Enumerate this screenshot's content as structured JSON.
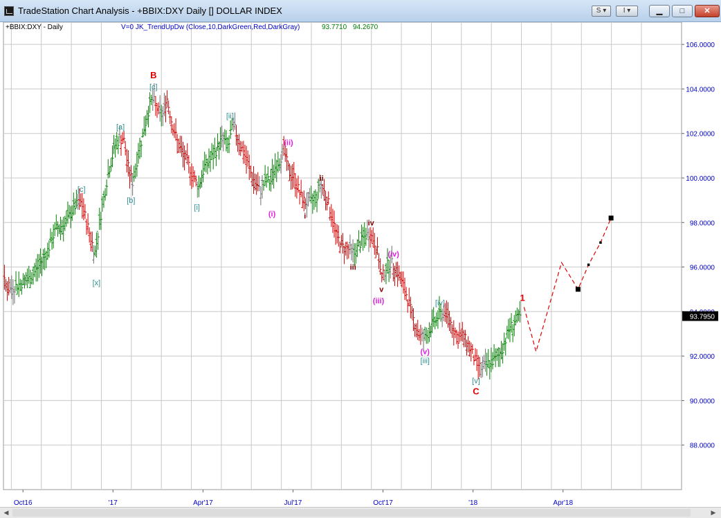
{
  "window": {
    "title": "TradeStation Chart Analysis - +BBIX:DXY Daily [] DOLLAR INDEX",
    "buttons": {
      "s_menu": "S",
      "i_menu": "I"
    }
  },
  "chart_header": {
    "symbol_label": "+BBIX:DXY - Daily",
    "indicator_label": "V=0  JK_TrendUpDw  (Close,10,DarkGreen,Red,DarkGray)",
    "indicator_value1": "93.7710",
    "indicator_value2": "94.2670"
  },
  "colors": {
    "up": "#008000",
    "down": "#d00000",
    "neutral": "#707070",
    "wave_teal": "#2f8f8f",
    "wave_magenta": "#e020e0",
    "wave_red": "#e00000",
    "wave_dark_red": "#800000",
    "axis_text": "#0000cc",
    "grid": "#c8c8c8"
  },
  "chart_data": {
    "type": "bar",
    "subtype": "ohlc",
    "title": "",
    "xlabel": "",
    "ylabel": "",
    "ylim": [
      86,
      107
    ],
    "y_ticks": [
      "106.0000",
      "104.0000",
      "102.0000",
      "100.0000",
      "98.0000",
      "96.0000",
      "94.0000",
      "92.0000",
      "90.0000",
      "88.0000"
    ],
    "x_tick_labels": [
      "Oct16",
      "'17",
      "Apr'17",
      "Jul'17",
      "Oct'17",
      "'18",
      "Apr'18"
    ],
    "x_tick_months": [
      1,
      4,
      7,
      10,
      13,
      16,
      19
    ],
    "last_price_label": "93.7950",
    "last_price": 93.795,
    "grid": true,
    "price_path": [
      [
        -0.9,
        95.5
      ],
      [
        -0.6,
        94.2
      ],
      [
        -0.3,
        95.9
      ],
      [
        0.2,
        95.0
      ],
      [
        0.5,
        95.2
      ],
      [
        0.9,
        95.5
      ],
      [
        1.4,
        96.5
      ],
      [
        1.75,
        97.7
      ],
      [
        2.1,
        98.0
      ],
      [
        2.35,
        98.7
      ],
      [
        2.6,
        98.9
      ],
      [
        2.85,
        97.6
      ],
      [
        3.05,
        96.6
      ],
      [
        3.25,
        98.4
      ],
      [
        3.5,
        100.3
      ],
      [
        3.75,
        101.6
      ],
      [
        4.0,
        101.8
      ],
      [
        4.15,
        100.5
      ],
      [
        4.3,
        99.8
      ],
      [
        4.45,
        100.8
      ],
      [
        4.7,
        102.3
      ],
      [
        4.9,
        103.4
      ],
      [
        5.0,
        103.5
      ],
      [
        5.15,
        103.0
      ],
      [
        5.3,
        102.8
      ],
      [
        5.45,
        103.6
      ],
      [
        5.6,
        102.6
      ],
      [
        5.8,
        101.6
      ],
      [
        6.0,
        101.0
      ],
      [
        6.2,
        100.5
      ],
      [
        6.35,
        100.0
      ],
      [
        6.5,
        99.6
      ],
      [
        6.7,
        100.5
      ],
      [
        7.0,
        101.0
      ],
      [
        7.3,
        101.8
      ],
      [
        7.5,
        101.4
      ],
      [
        7.65,
        102.4
      ],
      [
        7.9,
        101.5
      ],
      [
        8.1,
        100.8
      ],
      [
        8.3,
        100.0
      ],
      [
        8.55,
        99.4
      ],
      [
        8.75,
        99.9
      ],
      [
        8.9,
        99.8
      ],
      [
        9.05,
        100.5
      ],
      [
        9.2,
        100.8
      ],
      [
        9.35,
        101.3
      ],
      [
        9.5,
        100.3
      ],
      [
        9.7,
        100.0
      ],
      [
        9.9,
        99.2
      ],
      [
        10.05,
        98.9
      ],
      [
        10.25,
        98.9
      ],
      [
        10.45,
        99.2
      ],
      [
        10.55,
        99.8
      ],
      [
        10.75,
        99.2
      ],
      [
        10.95,
        98.3
      ],
      [
        11.1,
        97.4
      ],
      [
        11.3,
        96.9
      ],
      [
        11.5,
        96.8
      ],
      [
        11.7,
        96.6
      ],
      [
        11.85,
        97.0
      ],
      [
        12.05,
        97.4
      ],
      [
        12.2,
        97.5
      ],
      [
        12.35,
        97.2
      ],
      [
        12.5,
        96.5
      ],
      [
        12.6,
        95.4
      ],
      [
        12.75,
        96.0
      ],
      [
        12.9,
        96.2
      ],
      [
        13.1,
        95.9
      ],
      [
        13.25,
        95.4
      ],
      [
        13.45,
        94.7
      ],
      [
        13.6,
        93.9
      ],
      [
        13.75,
        93.3
      ],
      [
        13.9,
        92.9
      ],
      [
        14.05,
        92.8
      ],
      [
        14.25,
        93.3
      ],
      [
        14.5,
        93.8
      ],
      [
        14.7,
        94.0
      ],
      [
        14.85,
        93.7
      ],
      [
        15.0,
        93.2
      ],
      [
        15.15,
        92.8
      ],
      [
        15.3,
        92.9
      ],
      [
        15.45,
        92.6
      ],
      [
        15.6,
        92.2
      ],
      [
        15.75,
        91.7
      ],
      [
        15.95,
        91.4
      ],
      [
        16.2,
        91.7
      ],
      [
        16.45,
        91.9
      ],
      [
        16.65,
        92.4
      ],
      [
        16.85,
        93.2
      ],
      [
        17.1,
        93.6
      ],
      [
        17.25,
        93.8
      ]
    ],
    "forecast_path": [
      [
        17.35,
        94.2
      ],
      [
        17.75,
        92.2
      ],
      [
        18.6,
        96.2
      ],
      [
        19.15,
        95.0
      ],
      [
        19.5,
        96.1
      ],
      [
        19.9,
        97.1
      ],
      [
        20.25,
        98.2
      ]
    ],
    "forecast_markers": [
      {
        "x": 19.15,
        "y": 95.0,
        "size": "large"
      },
      {
        "x": 19.5,
        "y": 96.1,
        "size": "small"
      },
      {
        "x": 19.9,
        "y": 97.1,
        "size": "small"
      },
      {
        "x": 20.25,
        "y": 98.2,
        "size": "large"
      }
    ],
    "wave_labels": [
      {
        "text": "[b]",
        "x": -0.7,
        "y": 93.5,
        "color": "teal"
      },
      {
        "text": "[c]",
        "x": 2.6,
        "y": 99.5,
        "color": "teal"
      },
      {
        "text": "[x]",
        "x": 3.1,
        "y": 95.3,
        "color": "teal"
      },
      {
        "text": "[a]",
        "x": 3.9,
        "y": 102.3,
        "color": "teal"
      },
      {
        "text": "[b]",
        "x": 4.25,
        "y": 99.0,
        "color": "teal"
      },
      {
        "text": "[c]",
        "x": 5.0,
        "y": 104.1,
        "color": "teal"
      },
      {
        "text": "B",
        "x": 5.0,
        "y": 104.6,
        "color": "red"
      },
      {
        "text": "[i]",
        "x": 6.45,
        "y": 98.7,
        "color": "teal"
      },
      {
        "text": "[ii]",
        "x": 7.55,
        "y": 102.8,
        "color": "teal"
      },
      {
        "text": "(i)",
        "x": 8.95,
        "y": 98.4,
        "color": "magenta"
      },
      {
        "text": "(ii)",
        "x": 9.5,
        "y": 101.6,
        "color": "magenta"
      },
      {
        "text": "ii",
        "x": 10.6,
        "y": 100.0,
        "color": "dark_red"
      },
      {
        "text": "i",
        "x": 10.05,
        "y": 98.3,
        "color": "dark_red"
      },
      {
        "text": "iv",
        "x": 12.25,
        "y": 98.0,
        "color": "dark_red"
      },
      {
        "text": "iii",
        "x": 11.65,
        "y": 96.0,
        "color": "dark_red"
      },
      {
        "text": "(iv)",
        "x": 13.0,
        "y": 96.6,
        "color": "magenta"
      },
      {
        "text": "v",
        "x": 12.6,
        "y": 95.0,
        "color": "dark_red"
      },
      {
        "text": "(iii)",
        "x": 12.5,
        "y": 94.5,
        "color": "magenta"
      },
      {
        "text": "[iv]",
        "x": 14.55,
        "y": 94.4,
        "color": "teal"
      },
      {
        "text": "(v)",
        "x": 14.05,
        "y": 92.2,
        "color": "magenta"
      },
      {
        "text": "[iii]",
        "x": 14.05,
        "y": 91.8,
        "color": "teal"
      },
      {
        "text": "1",
        "x": 17.3,
        "y": 94.6,
        "color": "red"
      },
      {
        "text": "[v]",
        "x": 15.75,
        "y": 90.9,
        "color": "teal"
      },
      {
        "text": "C",
        "x": 15.75,
        "y": 90.4,
        "color": "red"
      }
    ]
  }
}
